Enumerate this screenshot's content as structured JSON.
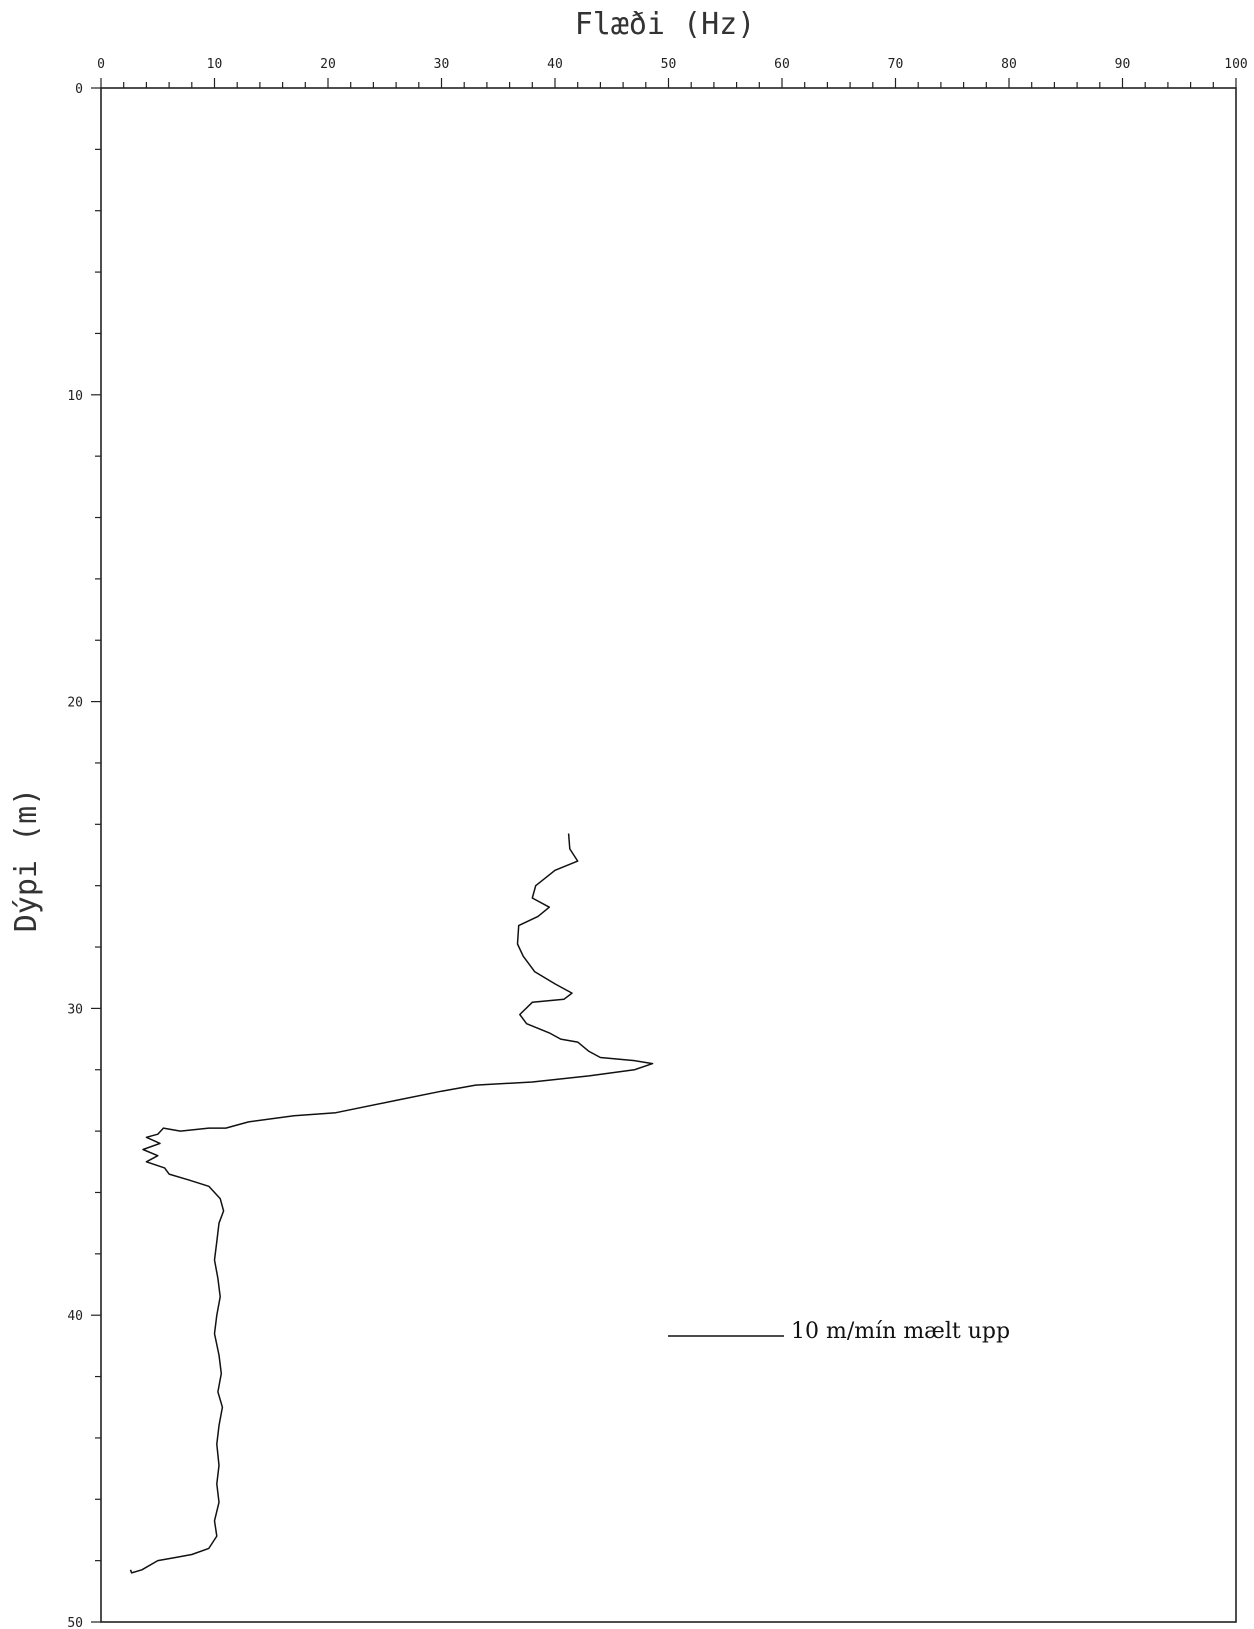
{
  "chart_data": {
    "type": "line",
    "title": "",
    "xlabel": "Flæði (Hz)",
    "ylabel": "Dýpi (m)",
    "xlim": [
      0,
      100
    ],
    "ylim": [
      0,
      50
    ],
    "x_axis_position": "top",
    "y_inverted": true,
    "grid": false,
    "xticks": [
      "0",
      "10",
      "20",
      "30",
      "40",
      "50",
      "60",
      "70",
      "80",
      "90",
      "100"
    ],
    "yticks": [
      "0",
      "10",
      "20",
      "30",
      "40",
      "50"
    ],
    "x_tick_values": [
      0,
      10,
      20,
      30,
      40,
      50,
      60,
      70,
      80,
      90,
      100
    ],
    "y_tick_values": [
      0,
      10,
      20,
      30,
      40,
      50
    ],
    "series": [
      {
        "name": "10 m/mín mælt upp",
        "color": "#111111",
        "points": [
          [
            41.2,
            24.3
          ],
          [
            41.3,
            24.8
          ],
          [
            42.0,
            25.2
          ],
          [
            40.0,
            25.5
          ],
          [
            38.3,
            26.0
          ],
          [
            38.0,
            26.4
          ],
          [
            39.5,
            26.7
          ],
          [
            38.5,
            27.0
          ],
          [
            36.8,
            27.3
          ],
          [
            36.7,
            27.9
          ],
          [
            37.2,
            28.3
          ],
          [
            38.2,
            28.8
          ],
          [
            40.0,
            29.2
          ],
          [
            41.5,
            29.5
          ],
          [
            40.8,
            29.7
          ],
          [
            38.0,
            29.8
          ],
          [
            36.9,
            30.2
          ],
          [
            37.5,
            30.5
          ],
          [
            39.5,
            30.8
          ],
          [
            40.5,
            31.0
          ],
          [
            42.0,
            31.1
          ],
          [
            43.0,
            31.4
          ],
          [
            44.0,
            31.6
          ],
          [
            47.0,
            31.7
          ],
          [
            48.6,
            31.8
          ],
          [
            47.0,
            32.0
          ],
          [
            43.0,
            32.2
          ],
          [
            38.0,
            32.4
          ],
          [
            33.0,
            32.5
          ],
          [
            30.0,
            32.7
          ],
          [
            26.0,
            33.0
          ],
          [
            20.7,
            33.4
          ],
          [
            17.0,
            33.5
          ],
          [
            13.0,
            33.7
          ],
          [
            11.0,
            33.9
          ],
          [
            9.5,
            33.9
          ],
          [
            7.0,
            34.0
          ],
          [
            5.5,
            33.9
          ],
          [
            5.0,
            34.1
          ],
          [
            4.0,
            34.2
          ],
          [
            5.2,
            34.4
          ],
          [
            3.7,
            34.6
          ],
          [
            5.0,
            34.8
          ],
          [
            4.0,
            35.0
          ],
          [
            5.6,
            35.2
          ],
          [
            6.0,
            35.4
          ],
          [
            7.8,
            35.6
          ],
          [
            9.5,
            35.8
          ],
          [
            10.5,
            36.2
          ],
          [
            10.8,
            36.6
          ],
          [
            10.4,
            37.0
          ],
          [
            10.2,
            37.6
          ],
          [
            10.0,
            38.2
          ],
          [
            10.3,
            38.8
          ],
          [
            10.5,
            39.4
          ],
          [
            10.2,
            40.0
          ],
          [
            10.0,
            40.6
          ],
          [
            10.4,
            41.3
          ],
          [
            10.6,
            41.9
          ],
          [
            10.3,
            42.5
          ],
          [
            10.7,
            43.0
          ],
          [
            10.4,
            43.6
          ],
          [
            10.2,
            44.2
          ],
          [
            10.4,
            44.9
          ],
          [
            10.2,
            45.5
          ],
          [
            10.4,
            46.1
          ],
          [
            10.0,
            46.7
          ],
          [
            10.2,
            47.2
          ],
          [
            9.5,
            47.6
          ],
          [
            8.0,
            47.8
          ],
          [
            6.5,
            47.9
          ],
          [
            5.0,
            48.0
          ],
          [
            3.6,
            48.3
          ],
          [
            2.7,
            48.4
          ],
          [
            2.6,
            48.3
          ]
        ]
      }
    ],
    "legend": {
      "label": "10 m/mín mælt upp",
      "position": "lower-right"
    }
  }
}
